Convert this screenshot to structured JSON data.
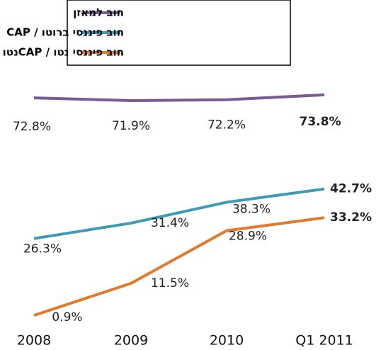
{
  "chart_data": {
    "type": "line",
    "categories": [
      "2008",
      "2009",
      "2010",
      "Q1 2011"
    ],
    "series": [
      {
        "name": "חוב למאזן",
        "color": "#7b5a93",
        "values": [
          72.8,
          71.9,
          72.2,
          73.8
        ],
        "value_labels": [
          "72.8%",
          "71.9%",
          "72.2%",
          "73.8%"
        ]
      },
      {
        "name": "חוב פיננסי ברוטו / CAP",
        "color": "#3f9bb5",
        "values": [
          26.3,
          31.4,
          38.3,
          42.7
        ],
        "value_labels": [
          "26.3%",
          "31.4%",
          "38.3%",
          "42.7%"
        ]
      },
      {
        "name": "חוב פיננסי נטו / CAPנטו",
        "color": "#e07b2e",
        "values": [
          0.9,
          11.5,
          28.9,
          33.2
        ],
        "value_labels": [
          "0.9%",
          "11.5%",
          "28.9%",
          "33.2%"
        ]
      }
    ]
  }
}
